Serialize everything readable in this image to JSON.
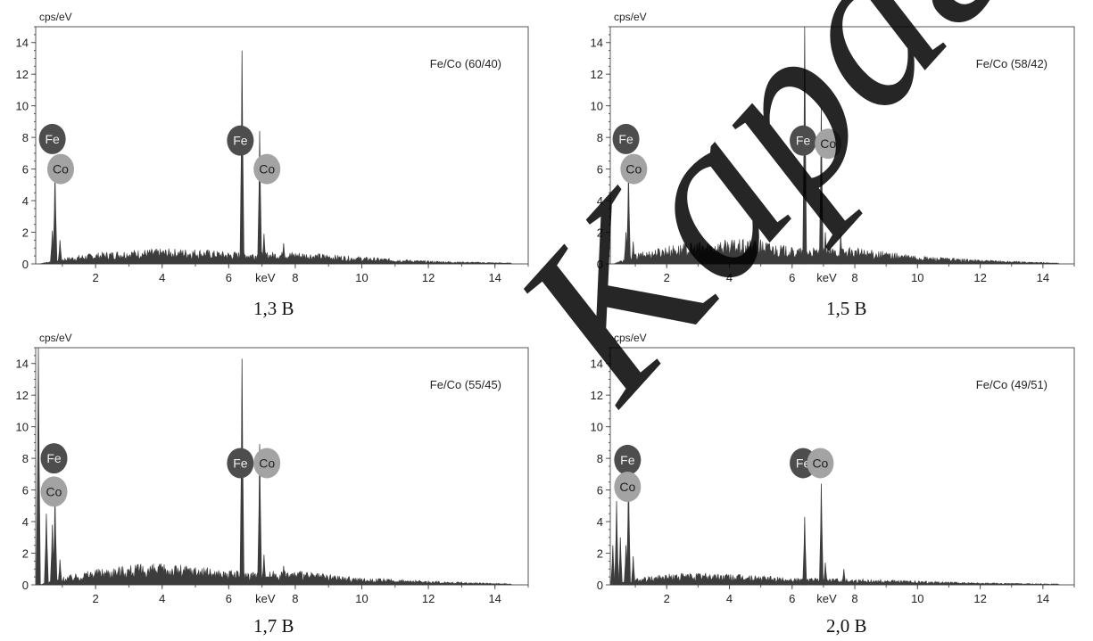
{
  "chart_data": [
    {
      "type": "line",
      "ylabel": "cps/eV",
      "xlabel": "keV",
      "ylim": [
        0,
        15
      ],
      "xlim": [
        0.2,
        15
      ],
      "x_ticks": [
        2,
        4,
        6,
        8,
        10,
        12,
        14
      ],
      "y_ticks": [
        0,
        2,
        4,
        6,
        8,
        10,
        12,
        14
      ],
      "annotation": "Fe/Co (60/40)",
      "caption": "1,3 В",
      "peaks": [
        {
          "x": 0.7,
          "y": 2.1
        },
        {
          "x": 0.78,
          "y": 5.8
        },
        {
          "x": 0.93,
          "y": 1.5
        },
        {
          "x": 6.4,
          "y": 13.5
        },
        {
          "x": 6.93,
          "y": 8.4
        },
        {
          "x": 7.06,
          "y": 1.9
        },
        {
          "x": 7.65,
          "y": 1.3
        }
      ],
      "background": [
        {
          "x": 0.3,
          "y": 0.0
        },
        {
          "x": 1.0,
          "y": 0.3
        },
        {
          "x": 2.0,
          "y": 0.55
        },
        {
          "x": 3.0,
          "y": 0.7
        },
        {
          "x": 4.0,
          "y": 0.75
        },
        {
          "x": 5.0,
          "y": 0.75
        },
        {
          "x": 6.0,
          "y": 0.6
        },
        {
          "x": 8.0,
          "y": 0.6
        },
        {
          "x": 10.0,
          "y": 0.35
        },
        {
          "x": 12.0,
          "y": 0.15
        },
        {
          "x": 14.5,
          "y": 0.05
        }
      ],
      "element_labels": [
        {
          "text": "Fe",
          "x": 0.7,
          "y": 7.9,
          "shade": "dark"
        },
        {
          "text": "Co",
          "x": 0.95,
          "y": 6.0,
          "shade": "light"
        },
        {
          "text": "Fe",
          "x": 6.35,
          "y": 7.8,
          "shade": "dark"
        },
        {
          "text": "Co",
          "x": 7.15,
          "y": 6.0,
          "shade": "light"
        }
      ]
    },
    {
      "type": "line",
      "ylabel": "cps/eV",
      "xlabel": "keV",
      "ylim": [
        0,
        15
      ],
      "xlim": [
        0.2,
        15
      ],
      "x_ticks": [
        2,
        4,
        6,
        8,
        10,
        12,
        14
      ],
      "y_ticks": [
        0,
        2,
        4,
        6,
        8,
        10,
        12,
        14
      ],
      "annotation": "Fe/Co (58/42)",
      "caption": "1,5 В",
      "peaks": [
        {
          "x": 0.7,
          "y": 2.0
        },
        {
          "x": 0.78,
          "y": 5.9
        },
        {
          "x": 0.93,
          "y": 1.4
        },
        {
          "x": 6.4,
          "y": 15.0
        },
        {
          "x": 6.93,
          "y": 9.9
        },
        {
          "x": 7.06,
          "y": 2.0
        },
        {
          "x": 7.55,
          "y": 1.9
        }
      ],
      "background": [
        {
          "x": 0.3,
          "y": 0.0
        },
        {
          "x": 1.0,
          "y": 0.5
        },
        {
          "x": 2.0,
          "y": 0.9
        },
        {
          "x": 3.0,
          "y": 1.1
        },
        {
          "x": 4.0,
          "y": 1.2
        },
        {
          "x": 5.0,
          "y": 1.2
        },
        {
          "x": 6.0,
          "y": 0.8
        },
        {
          "x": 8.0,
          "y": 0.8
        },
        {
          "x": 10.0,
          "y": 0.4
        },
        {
          "x": 12.0,
          "y": 0.2
        },
        {
          "x": 14.5,
          "y": 0.05
        }
      ],
      "element_labels": [
        {
          "text": "Fe",
          "x": 0.7,
          "y": 7.9,
          "shade": "dark"
        },
        {
          "text": "Co",
          "x": 0.95,
          "y": 6.0,
          "shade": "light"
        },
        {
          "text": "Fe",
          "x": 6.35,
          "y": 7.8,
          "shade": "dark"
        },
        {
          "text": "Co",
          "x": 7.15,
          "y": 7.6,
          "shade": "light"
        }
      ]
    },
    {
      "type": "line",
      "ylabel": "cps/eV",
      "xlabel": "keV",
      "ylim": [
        0,
        15
      ],
      "xlim": [
        0.2,
        15
      ],
      "x_ticks": [
        2,
        4,
        6,
        8,
        10,
        12,
        14
      ],
      "y_ticks": [
        0,
        2,
        4,
        6,
        8,
        10,
        12,
        14
      ],
      "annotation": "Fe/Co (55/45)",
      "caption": "1,7 В",
      "peaks": [
        {
          "x": 0.28,
          "y": 15.0
        },
        {
          "x": 0.52,
          "y": 4.5
        },
        {
          "x": 0.7,
          "y": 3.8
        },
        {
          "x": 0.78,
          "y": 5.6
        },
        {
          "x": 0.93,
          "y": 1.6
        },
        {
          "x": 6.4,
          "y": 14.3
        },
        {
          "x": 6.93,
          "y": 8.9
        },
        {
          "x": 7.06,
          "y": 1.9
        },
        {
          "x": 7.65,
          "y": 1.2
        }
      ],
      "background": [
        {
          "x": 0.3,
          "y": 0.0
        },
        {
          "x": 1.0,
          "y": 0.4
        },
        {
          "x": 2.0,
          "y": 0.8
        },
        {
          "x": 3.0,
          "y": 1.0
        },
        {
          "x": 4.0,
          "y": 1.05
        },
        {
          "x": 5.0,
          "y": 0.95
        },
        {
          "x": 6.0,
          "y": 0.7
        },
        {
          "x": 8.0,
          "y": 0.7
        },
        {
          "x": 10.0,
          "y": 0.35
        },
        {
          "x": 12.0,
          "y": 0.2
        },
        {
          "x": 14.5,
          "y": 0.05
        }
      ],
      "element_labels": [
        {
          "text": "Fe",
          "x": 0.75,
          "y": 8.0,
          "shade": "dark"
        },
        {
          "text": "Co",
          "x": 0.75,
          "y": 5.9,
          "shade": "light"
        },
        {
          "text": "Fe",
          "x": 6.35,
          "y": 7.7,
          "shade": "dark"
        },
        {
          "text": "Co",
          "x": 7.15,
          "y": 7.7,
          "shade": "light"
        }
      ]
    },
    {
      "type": "line",
      "ylabel": "cps/eV",
      "xlabel": "keV",
      "ylim": [
        0,
        15
      ],
      "xlim": [
        0.2,
        15
      ],
      "x_ticks": [
        2,
        4,
        6,
        8,
        10,
        12,
        14
      ],
      "y_ticks": [
        0,
        2,
        4,
        6,
        8,
        10,
        12,
        14
      ],
      "annotation": "Fe/Co (49/51)",
      "caption": "2,0 В",
      "peaks": [
        {
          "x": 0.28,
          "y": 2.5
        },
        {
          "x": 0.4,
          "y": 5.3
        },
        {
          "x": 0.52,
          "y": 3.0
        },
        {
          "x": 0.7,
          "y": 2.5
        },
        {
          "x": 0.78,
          "y": 7.1
        },
        {
          "x": 0.93,
          "y": 1.8
        },
        {
          "x": 6.4,
          "y": 4.3
        },
        {
          "x": 6.93,
          "y": 6.4
        },
        {
          "x": 7.06,
          "y": 1.4
        },
        {
          "x": 7.65,
          "y": 1.0
        }
      ],
      "background": [
        {
          "x": 0.3,
          "y": 0.0
        },
        {
          "x": 1.0,
          "y": 0.3
        },
        {
          "x": 2.0,
          "y": 0.55
        },
        {
          "x": 3.0,
          "y": 0.6
        },
        {
          "x": 4.0,
          "y": 0.55
        },
        {
          "x": 5.0,
          "y": 0.45
        },
        {
          "x": 6.0,
          "y": 0.35
        },
        {
          "x": 8.0,
          "y": 0.3
        },
        {
          "x": 10.0,
          "y": 0.2
        },
        {
          "x": 12.0,
          "y": 0.1
        },
        {
          "x": 14.5,
          "y": 0.05
        }
      ],
      "element_labels": [
        {
          "text": "Fe",
          "x": 0.75,
          "y": 7.9,
          "shade": "dark"
        },
        {
          "text": "Co",
          "x": 0.75,
          "y": 6.2,
          "shade": "light"
        },
        {
          "text": "Fe",
          "x": 6.35,
          "y": 7.7,
          "shade": "dark"
        },
        {
          "text": "Co",
          "x": 6.9,
          "y": 7.7,
          "shade": "light"
        }
      ]
    }
  ],
  "colors": {
    "spectrum": "#3c3c3c",
    "axis": "#555555",
    "label_dark": "#4d4d4d",
    "label_light": "#a3a3a3"
  },
  "watermark": "Карагандинский"
}
